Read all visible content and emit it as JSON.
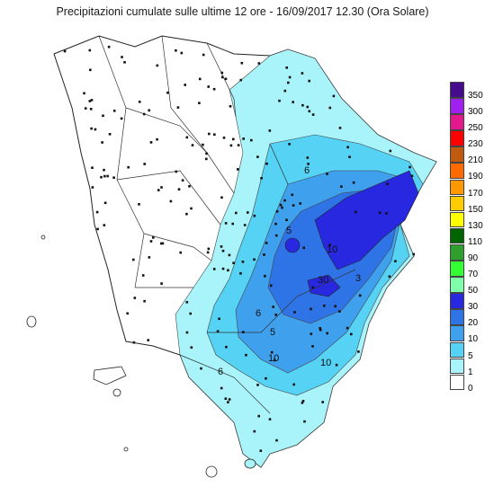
{
  "title": "Precipitazioni cumulate sulle ultime 12 ore - 16/09/2017 12.30 (Ora Solare)",
  "legend": {
    "items": [
      {
        "label": "350",
        "color": "#440c8c"
      },
      {
        "label": "300",
        "color": "#a020f0"
      },
      {
        "label": "250",
        "color": "#e4188c"
      },
      {
        "label": "230",
        "color": "#ff0000"
      },
      {
        "label": "210",
        "color": "#c05a10"
      },
      {
        "label": "190",
        "color": "#ff6a00"
      },
      {
        "label": "170",
        "color": "#ff9900"
      },
      {
        "label": "150",
        "color": "#ffcc00"
      },
      {
        "label": "130",
        "color": "#ffff00"
      },
      {
        "label": "110",
        "color": "#006400"
      },
      {
        "label": "90",
        "color": "#2e9e2e"
      },
      {
        "label": "70",
        "color": "#33ff33"
      },
      {
        "label": "50",
        "color": "#7fffaa"
      },
      {
        "label": "30",
        "color": "#2828e0"
      },
      {
        "label": "20",
        "color": "#2f74e6"
      },
      {
        "label": "10",
        "color": "#3fa0ee"
      },
      {
        "label": "5",
        "color": "#55d2f4"
      },
      {
        "label": "1",
        "color": "#a9f4fa"
      },
      {
        "label": "0",
        "color": "#ffffff"
      }
    ]
  },
  "contour_labels": [
    "6",
    "10",
    "5",
    "30",
    "6",
    "6",
    "10",
    "5",
    "3",
    "10"
  ],
  "colors": {
    "outline": "#222222",
    "station": "#111111"
  }
}
